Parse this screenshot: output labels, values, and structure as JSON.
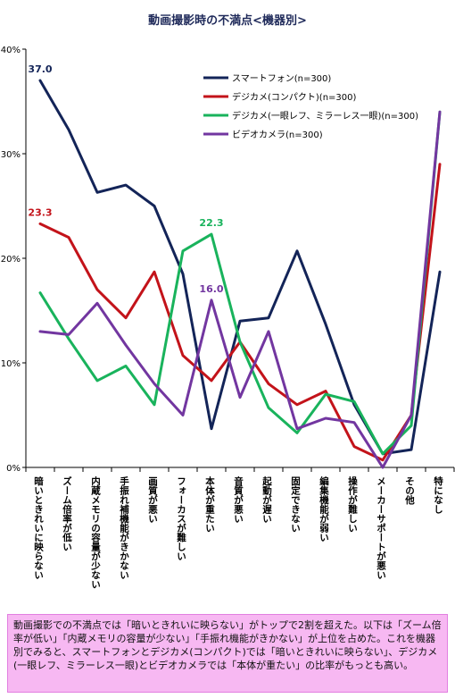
{
  "chart_data": {
    "type": "line",
    "title": "動画撮影時の不満点<機器別>",
    "categories": [
      "暗いときれいに映らない",
      "ズーム倍率が低い",
      "内蔵メモリの容量が少ない",
      "手振れ補機能がきかない",
      "画質が悪い",
      "フォーカスが難しい",
      "本体が重たい",
      "音質が悪い",
      "起動が遅い",
      "固定できない",
      "編集機能が弱い",
      "操作が難しい",
      "メーカーサポートが悪い",
      "その他",
      "特になし"
    ],
    "ylim": [
      0,
      40
    ],
    "yticks": [
      "0%",
      "10%",
      "20%",
      "30%",
      "40%"
    ],
    "legend_position": "top-right",
    "grid": false,
    "series": [
      {
        "name": "スマートフォン(n=300)",
        "color": "#132458",
        "values": [
          37.0,
          32.3,
          26.3,
          27.0,
          25.0,
          18.5,
          3.7,
          14.0,
          14.3,
          20.7,
          13.7,
          6.0,
          1.3,
          1.7,
          18.7
        ]
      },
      {
        "name": "デジカメ(コンパクト)(n=300)",
        "color": "#c3131a",
        "values": [
          23.3,
          22.0,
          17.0,
          14.3,
          18.7,
          10.7,
          8.3,
          12.0,
          8.0,
          6.0,
          7.3,
          2.0,
          0.7,
          5.0,
          29.0
        ]
      },
      {
        "name": "デジカメ(一眼レフ、ミラーレス一眼)(n=300)",
        "color": "#19b35c",
        "values": [
          16.7,
          12.3,
          8.3,
          9.7,
          6.0,
          20.7,
          22.3,
          12.0,
          5.7,
          3.3,
          7.0,
          6.3,
          1.3,
          4.0,
          34.0
        ]
      },
      {
        "name": "ビデオカメラ(n=300)",
        "color": "#7236a0",
        "values": [
          13.0,
          12.7,
          15.7,
          11.7,
          8.0,
          5.0,
          16.0,
          6.7,
          13.0,
          3.7,
          4.7,
          4.3,
          0.0,
          5.0,
          34.0
        ]
      }
    ],
    "data_labels": [
      {
        "series": 0,
        "index": 0,
        "text": "37.0"
      },
      {
        "series": 1,
        "index": 0,
        "text": "23.3"
      },
      {
        "series": 2,
        "index": 6,
        "text": "22.3"
      },
      {
        "series": 3,
        "index": 6,
        "text": "16.0"
      }
    ]
  },
  "note": "動画撮影での不満点では「暗いときれいに映らない」がトップで2割を超えた。以下は「ズーム倍率が低い」「内蔵メモリの容量が少ない」「手振れ機能がきかない」が上位を占めた。これを機器別でみると、スマートフォンとデジカメ(コンパクト)では「暗いときれいに映らない」、デジカメ(一眼レフ、ミラーレス一眼)とビデオカメラでは「本体が重たい」の比率がもっとも高い。"
}
